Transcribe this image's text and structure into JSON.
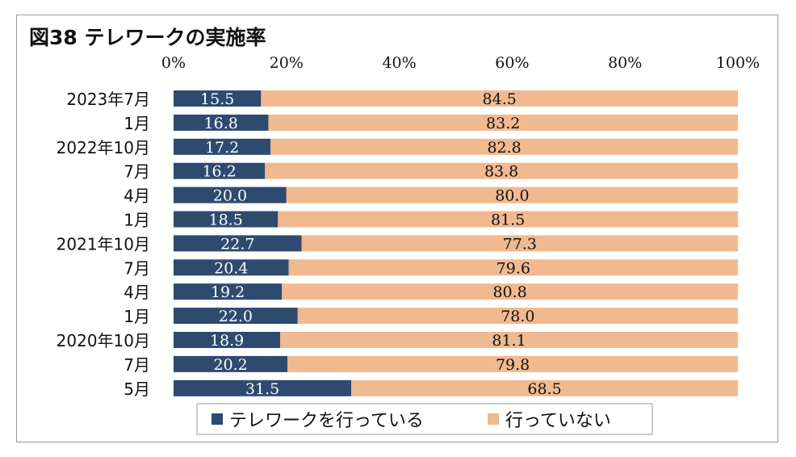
{
  "chart_data": {
    "type": "bar",
    "orientation": "horizontal",
    "stacked": true,
    "title": "図38 テレワークの実施率",
    "categories": [
      "2023年7月",
      "1月",
      "2022年10月",
      "7月",
      "4月",
      "1月",
      "2021年10月",
      "7月",
      "4月",
      "1月",
      "2020年10月",
      "7月",
      "5月"
    ],
    "series": [
      {
        "name": "テレワークを行っている",
        "color": "#2e4a6f",
        "values": [
          15.5,
          16.8,
          17.2,
          16.2,
          20.0,
          18.5,
          22.7,
          20.4,
          19.2,
          22.0,
          18.9,
          20.2,
          31.5
        ]
      },
      {
        "name": "行っていない",
        "color": "#f0b98f",
        "values": [
          84.5,
          83.2,
          82.8,
          83.8,
          80.0,
          81.5,
          77.3,
          79.6,
          80.8,
          78.0,
          81.1,
          79.8,
          68.5
        ]
      }
    ],
    "xlim": [
      0,
      100
    ],
    "x_ticks": [
      "0%",
      "20%",
      "40%",
      "60%",
      "80%",
      "100%"
    ],
    "xlabel": "",
    "ylabel": "",
    "grid": false,
    "legend_position": "bottom"
  }
}
